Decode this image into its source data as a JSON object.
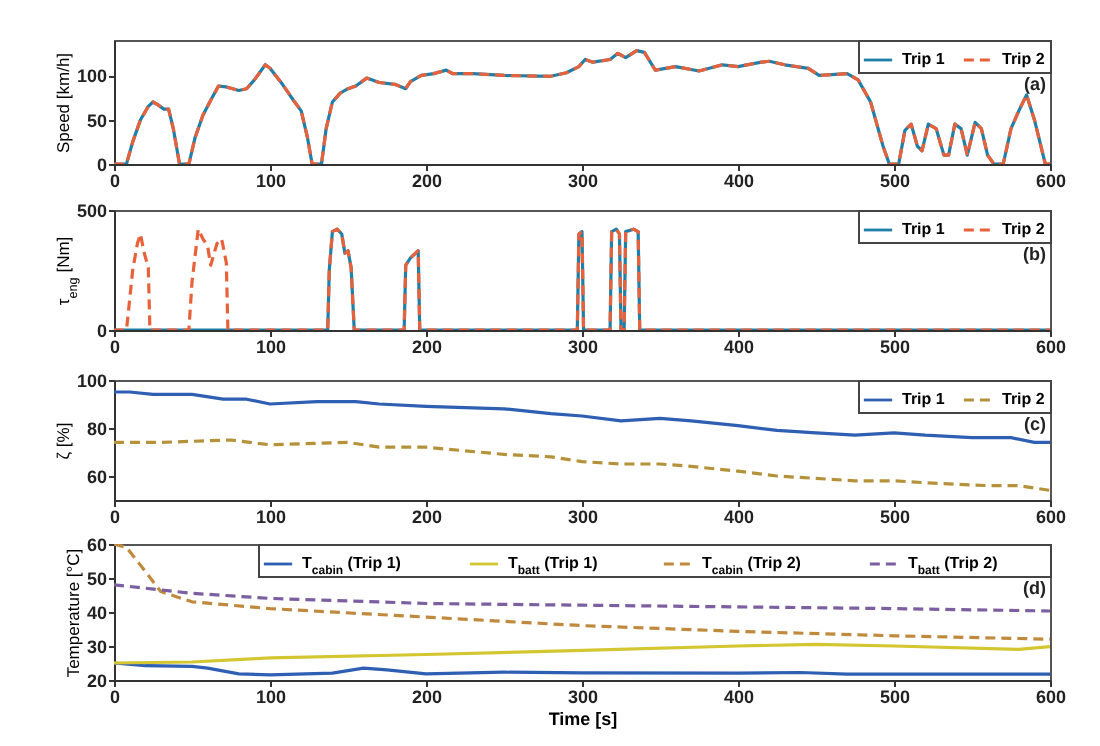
{
  "chart_data": [
    {
      "type": "line",
      "ylabel": "Speed [km/h]",
      "xlim": [
        0,
        600
      ],
      "xticks": [
        0,
        100,
        200,
        300,
        400,
        500,
        600
      ],
      "ylim": [
        0,
        140
      ],
      "yticks": [
        0,
        50,
        100
      ],
      "legend": "top right",
      "grid": false,
      "annotations": [
        "(a)"
      ],
      "series": [
        {
          "name": "Trip 1",
          "color": "#1f7fa8",
          "line_style": "solid",
          "x": [
            0,
            8,
            12,
            17,
            22,
            25,
            28,
            32,
            35,
            38,
            42,
            48,
            52,
            57,
            62,
            67,
            72,
            80,
            85,
            90,
            97,
            100,
            108,
            115,
            120,
            124,
            127,
            133,
            136,
            140,
            145,
            150,
            155,
            162,
            170,
            180,
            187,
            190,
            197,
            205,
            213,
            217,
            230,
            250,
            280,
            290,
            298,
            302,
            307,
            318,
            323,
            328,
            335,
            340,
            347,
            360,
            375,
            390,
            400,
            415,
            420,
            430,
            445,
            452,
            470,
            477,
            485,
            493,
            497,
            503,
            507,
            511,
            515,
            518,
            522,
            527,
            532,
            535,
            539,
            543,
            547,
            552,
            556,
            560,
            564,
            570,
            575,
            580,
            585,
            590,
            597,
            600
          ],
          "values": [
            0,
            0,
            25,
            50,
            65,
            70,
            67,
            62,
            62,
            40,
            0,
            0,
            30,
            55,
            72,
            88,
            87,
            83,
            85,
            95,
            112,
            108,
            90,
            72,
            60,
            30,
            0,
            0,
            40,
            70,
            80,
            85,
            88,
            97,
            92,
            90,
            85,
            93,
            100,
            102,
            106,
            102,
            102,
            100,
            99,
            103,
            110,
            118,
            115,
            118,
            125,
            120,
            128,
            126,
            106,
            110,
            105,
            112,
            110,
            115,
            116,
            112,
            108,
            100,
            102,
            95,
            70,
            20,
            0,
            0,
            38,
            45,
            20,
            15,
            45,
            40,
            10,
            10,
            45,
            40,
            10,
            47,
            40,
            10,
            0,
            0,
            40,
            60,
            78,
            50,
            0,
            0
          ]
        },
        {
          "name": "Trip 2",
          "color": "#e8613a",
          "line_style": "dashed",
          "x": [
            0,
            8,
            12,
            17,
            22,
            25,
            28,
            32,
            35,
            38,
            42,
            48,
            52,
            57,
            62,
            67,
            72,
            80,
            85,
            90,
            97,
            100,
            108,
            115,
            120,
            124,
            127,
            133,
            136,
            140,
            145,
            150,
            155,
            162,
            170,
            180,
            187,
            190,
            197,
            205,
            213,
            217,
            230,
            250,
            280,
            290,
            298,
            302,
            307,
            318,
            323,
            328,
            335,
            340,
            347,
            360,
            375,
            390,
            400,
            415,
            420,
            430,
            445,
            452,
            470,
            477,
            485,
            493,
            497,
            503,
            507,
            511,
            515,
            518,
            522,
            527,
            532,
            535,
            539,
            543,
            547,
            552,
            556,
            560,
            564,
            570,
            575,
            580,
            585,
            590,
            597,
            600
          ],
          "values": [
            0,
            0,
            25,
            50,
            65,
            70,
            67,
            62,
            62,
            40,
            0,
            0,
            30,
            55,
            72,
            88,
            87,
            83,
            85,
            95,
            112,
            108,
            90,
            72,
            60,
            30,
            0,
            0,
            40,
            70,
            80,
            85,
            88,
            97,
            92,
            90,
            85,
            93,
            100,
            102,
            106,
            102,
            102,
            100,
            99,
            103,
            110,
            118,
            115,
            118,
            125,
            120,
            128,
            126,
            106,
            110,
            105,
            112,
            110,
            115,
            116,
            112,
            108,
            100,
            102,
            95,
            70,
            20,
            0,
            0,
            38,
            45,
            20,
            15,
            45,
            40,
            10,
            10,
            45,
            40,
            10,
            47,
            40,
            10,
            0,
            0,
            40,
            60,
            78,
            50,
            0,
            0
          ]
        }
      ]
    },
    {
      "type": "line",
      "ylabel": "τ$_{eng}$ [Nm]",
      "xlim": [
        0,
        600
      ],
      "xticks": [
        0,
        100,
        200,
        300,
        400,
        500,
        600
      ],
      "ylim": [
        0,
        500
      ],
      "yticks": [
        0,
        500
      ],
      "legend": "top right",
      "grid": false,
      "annotations": [
        "(b)"
      ],
      "series": [
        {
          "name": "Trip 1",
          "color": "#1f7fa8",
          "line_style": "solid",
          "x": [
            0,
            137,
            138,
            140,
            143,
            146,
            148,
            150,
            152,
            154,
            186,
            187,
            190,
            195,
            196,
            297,
            298,
            300,
            301,
            318,
            319,
            322,
            324,
            325,
            327,
            328,
            333,
            336,
            337,
            600
          ],
          "values": [
            0,
            0,
            250,
            410,
            420,
            400,
            320,
            330,
            260,
            0,
            0,
            270,
            300,
            330,
            0,
            0,
            400,
            410,
            0,
            0,
            410,
            420,
            400,
            0,
            0,
            410,
            420,
            410,
            0,
            0
          ]
        },
        {
          "name": "Trip 2",
          "color": "#e8613a",
          "line_style": "dashed",
          "x": [
            0,
            8,
            12,
            15,
            17,
            19,
            22,
            23,
            48,
            50,
            54,
            57,
            60,
            62,
            66,
            69,
            72,
            73,
            137,
            138,
            140,
            143,
            146,
            148,
            150,
            152,
            154,
            186,
            187,
            190,
            195,
            196,
            297,
            298,
            300,
            301,
            318,
            319,
            322,
            324,
            325,
            327,
            328,
            333,
            336,
            337,
            600
          ],
          "values": [
            0,
            0,
            250,
            360,
            400,
            330,
            260,
            0,
            0,
            200,
            420,
            380,
            350,
            270,
            360,
            380,
            280,
            0,
            0,
            250,
            410,
            420,
            400,
            320,
            330,
            260,
            0,
            0,
            270,
            300,
            330,
            0,
            0,
            400,
            410,
            0,
            0,
            410,
            420,
            400,
            0,
            0,
            410,
            420,
            410,
            0,
            0
          ]
        }
      ]
    },
    {
      "type": "line",
      "ylabel": "ζ [%]",
      "xlim": [
        0,
        600
      ],
      "xticks": [
        0,
        100,
        200,
        300,
        400,
        500,
        600
      ],
      "ylim": [
        50,
        100
      ],
      "yticks": [
        60,
        80,
        100
      ],
      "legend": "top right",
      "grid": false,
      "annotations": [
        "(c)"
      ],
      "series": [
        {
          "name": "Trip 1",
          "color": "#2f5fb3",
          "line_style": "solid",
          "x": [
            0,
            10,
            25,
            50,
            70,
            85,
            100,
            130,
            155,
            170,
            200,
            250,
            280,
            300,
            325,
            350,
            370,
            400,
            425,
            450,
            475,
            500,
            520,
            550,
            575,
            590,
            600
          ],
          "values": [
            95,
            95,
            94,
            94,
            92,
            92,
            90,
            91,
            91,
            90,
            89,
            88,
            86,
            85,
            83,
            84,
            83,
            81,
            79,
            78,
            77,
            78,
            77,
            76,
            76,
            74,
            74
          ]
        },
        {
          "name": "Trip 2",
          "color": "#b5923a",
          "line_style": "dashed",
          "x": [
            0,
            30,
            75,
            100,
            150,
            170,
            200,
            250,
            280,
            300,
            325,
            350,
            370,
            400,
            425,
            450,
            475,
            500,
            525,
            560,
            580,
            600
          ],
          "values": [
            74,
            74,
            75,
            73,
            74,
            72,
            72,
            69,
            68,
            66,
            65,
            65,
            64,
            62,
            60,
            59,
            58,
            58,
            57,
            56,
            56,
            54
          ]
        }
      ]
    },
    {
      "type": "line",
      "xlabel": "Time [s]",
      "ylabel": "Temperature [°C]",
      "xlim": [
        0,
        600
      ],
      "xticks": [
        0,
        100,
        200,
        300,
        400,
        500,
        600
      ],
      "ylim": [
        20,
        60
      ],
      "yticks": [
        20,
        30,
        40,
        50,
        60
      ],
      "legend": "top right",
      "grid": false,
      "annotations": [
        "(d)"
      ],
      "series": [
        {
          "name": "T$_{cabin}$ (Trip 1)",
          "color": "#2f5fb3",
          "line_style": "solid",
          "x": [
            0,
            20,
            50,
            60,
            80,
            100,
            140,
            160,
            175,
            200,
            250,
            300,
            400,
            440,
            470,
            600
          ],
          "values": [
            25,
            24.2,
            24,
            23.5,
            21.8,
            21.5,
            22,
            23.5,
            23,
            21.8,
            22.3,
            22.1,
            22,
            22.2,
            21.7,
            21.7
          ]
        },
        {
          "name": "T$_{batt}$ (Trip 1)",
          "color": "#d4c631",
          "line_style": "solid",
          "x": [
            0,
            50,
            100,
            200,
            300,
            400,
            450,
            500,
            580,
            600
          ],
          "values": [
            25,
            25.3,
            26.5,
            27.5,
            28.7,
            30,
            30.5,
            30,
            29,
            29.8
          ]
        },
        {
          "name": "T$_{cabin}$ (Trip 2)",
          "color": "#c08a3e",
          "line_style": "dashed",
          "x": [
            0,
            8,
            20,
            30,
            50,
            100,
            200,
            300,
            400,
            500,
            600
          ],
          "values": [
            60,
            59,
            52,
            46,
            43,
            41,
            38.5,
            36,
            34.3,
            33,
            32
          ]
        },
        {
          "name": "T$_{batt}$ (Trip 2)",
          "color": "#7b5fa0",
          "line_style": "dashed",
          "x": [
            0,
            20,
            50,
            100,
            200,
            300,
            400,
            500,
            600
          ],
          "values": [
            48,
            47,
            45.5,
            44,
            42.5,
            42,
            41.5,
            41,
            40.3
          ]
        }
      ]
    }
  ]
}
